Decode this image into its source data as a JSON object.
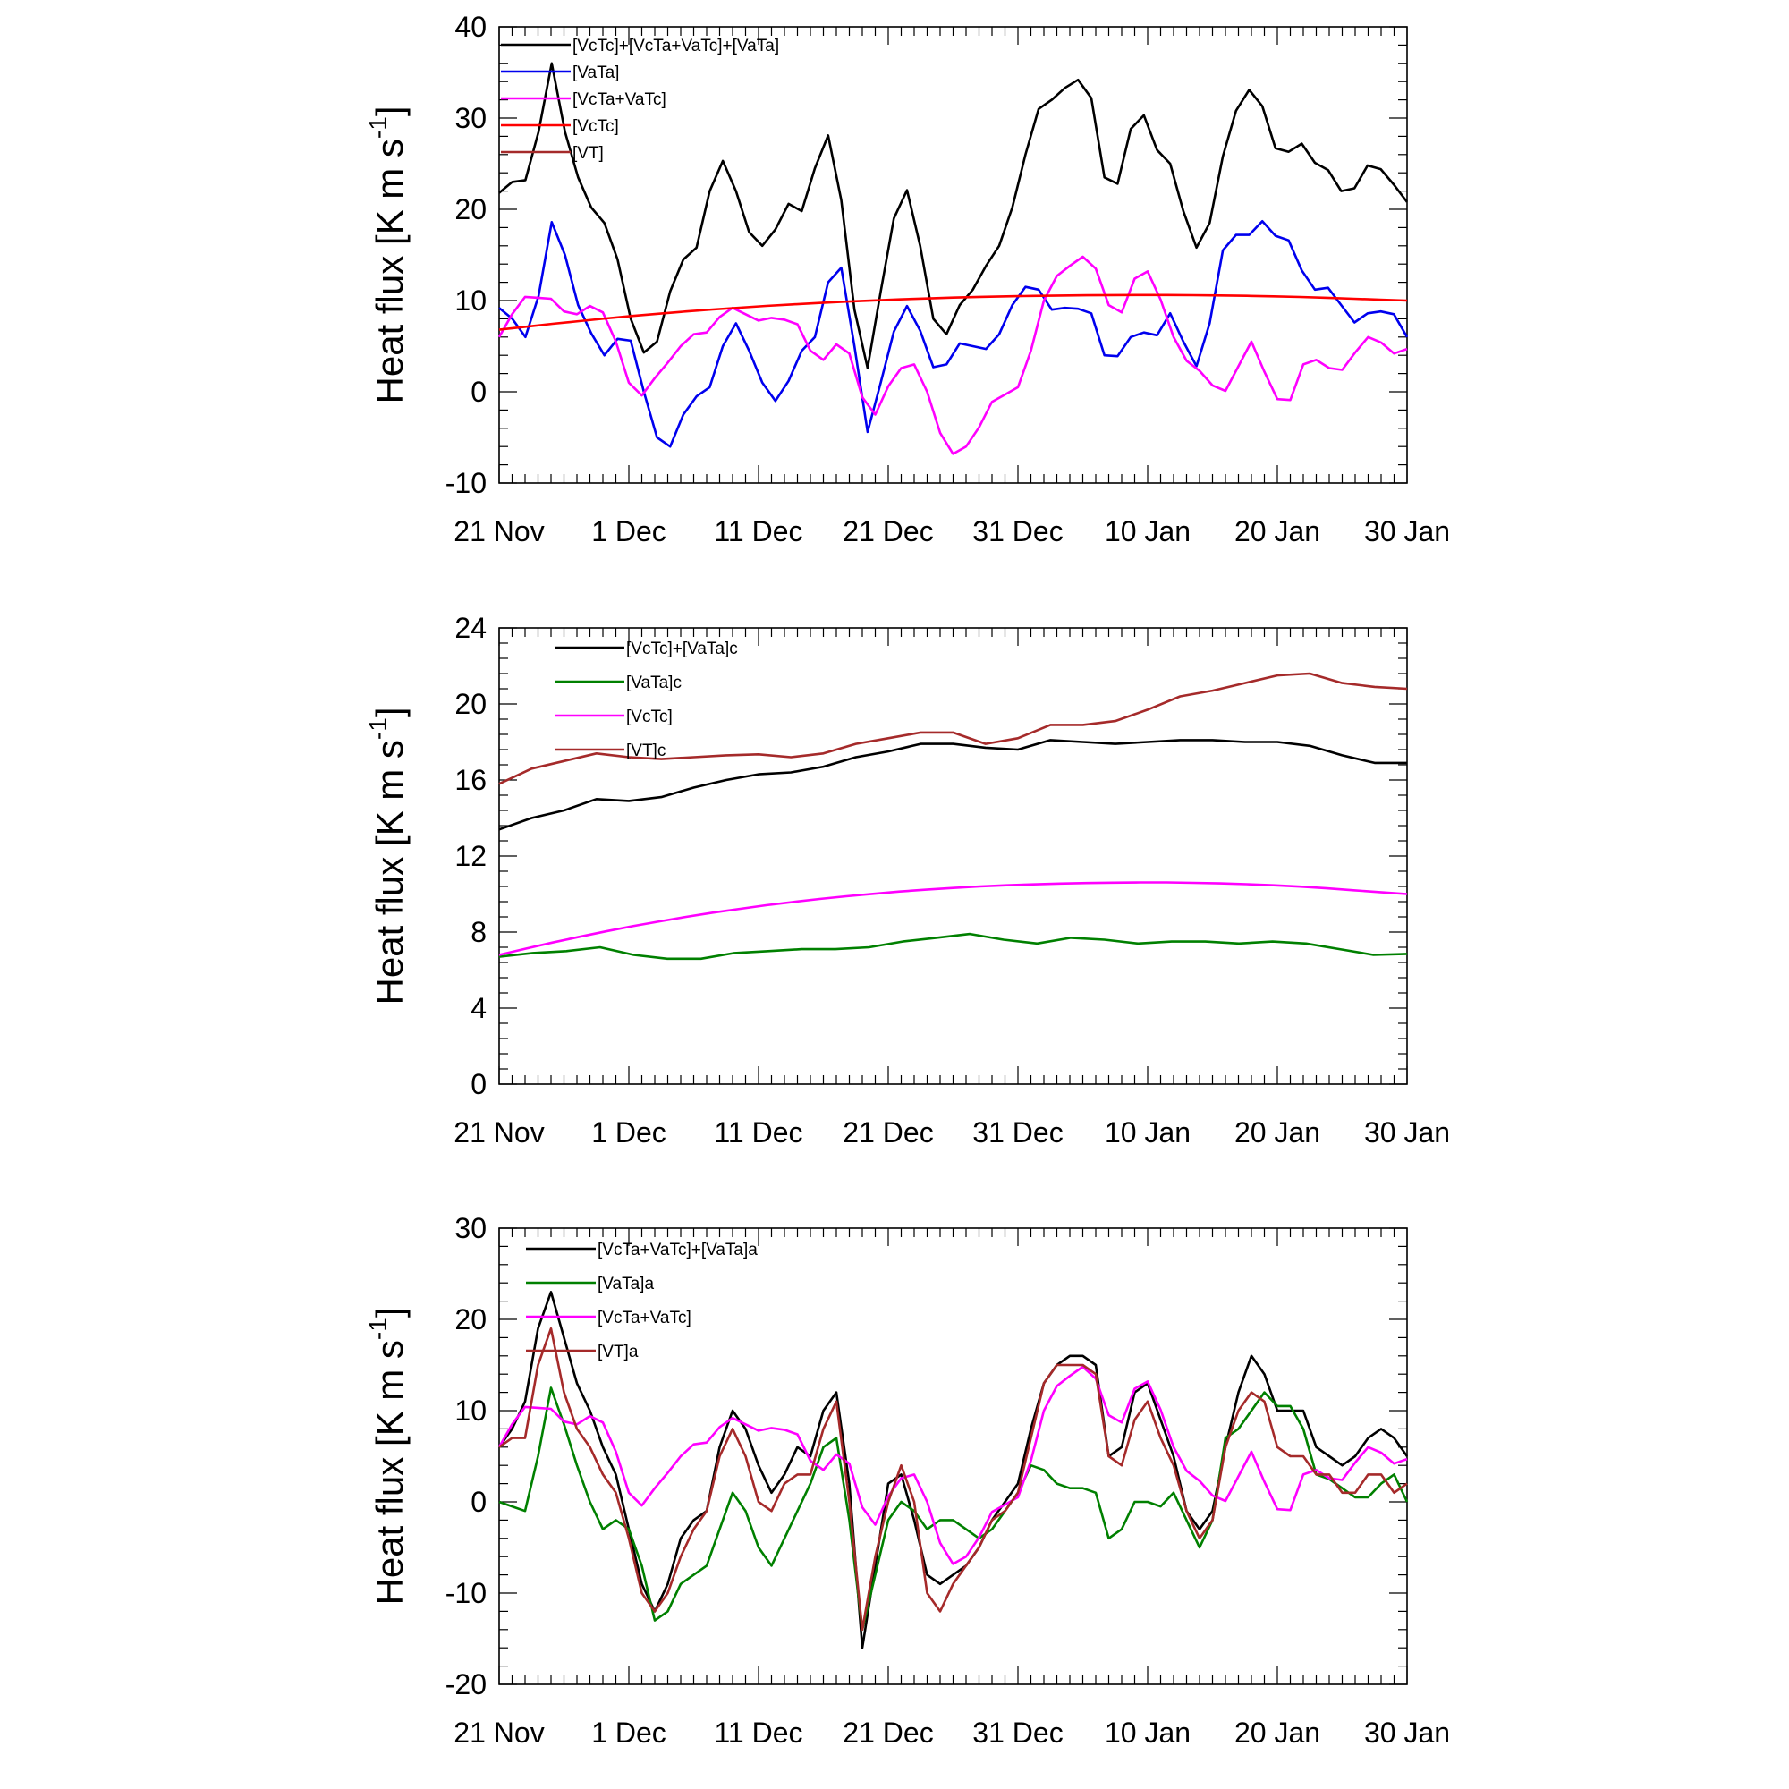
{
  "chart_data": [
    {
      "type": "line",
      "ylabel": "Heat flux [K m s",
      "ylabel_sup": "-1",
      "ylabel_close": "]",
      "ylim": [
        -10,
        40
      ],
      "yticks": [
        -10,
        0,
        10,
        20,
        30,
        40
      ],
      "xlim": [
        0,
        70
      ],
      "xticks": [
        {
          "day": 0,
          "label": "21 Nov"
        },
        {
          "day": 10,
          "label": "1 Dec"
        },
        {
          "day": 20,
          "label": "11 Dec"
        },
        {
          "day": 30,
          "label": "21 Dec"
        },
        {
          "day": 40,
          "label": "31 Dec"
        },
        {
          "day": 50,
          "label": "10 Jan"
        },
        {
          "day": 60,
          "label": "20 Jan"
        },
        {
          "day": 70,
          "label": "30 Jan"
        }
      ],
      "legend_location": "top-left",
      "series": [
        {
          "name": "[VcTc]+[VcTa+VaTc]+[VaTa]",
          "color": "#000000",
          "in_legend": true,
          "values": [
            21.8,
            23,
            23.2,
            28.5,
            36,
            28.5,
            23.5,
            20.2,
            18.5,
            14.5,
            8,
            4.3,
            5.5,
            11,
            14.5,
            15.8,
            22,
            25.3,
            22,
            17.5,
            16,
            17.8,
            20.6,
            19.8,
            24.5,
            28.1,
            21,
            9,
            2.6,
            11,
            19,
            22.1,
            16,
            8,
            6.3,
            9.5,
            11.2,
            13.8,
            16,
            20.2,
            26,
            31,
            32,
            33.3,
            34.2,
            32.2,
            23.5,
            22.8,
            28.8,
            30.3,
            26.5,
            25,
            19.8,
            15.8,
            18.5,
            25.8,
            30.8,
            33.1,
            31.3,
            26.7,
            26.3,
            27.2,
            25.1,
            24.3,
            22,
            22.3,
            24.8,
            24.4,
            22.7,
            20.8
          ]
        },
        {
          "name": "[VaTa]",
          "color": "#0000ee",
          "in_legend": true,
          "values": [
            9.2,
            8,
            6,
            10.5,
            18.6,
            15,
            9.5,
            6.4,
            4,
            5.8,
            5.6,
            0,
            -5,
            -6,
            -2.5,
            -0.5,
            0.5,
            5,
            7.5,
            4.5,
            1,
            -1,
            1.2,
            4.5,
            6,
            12,
            13.6,
            5,
            -4.4,
            1,
            6.6,
            9.4,
            6.7,
            2.7,
            3,
            5.3,
            5,
            4.7,
            6.3,
            9.5,
            11.5,
            11.2,
            9,
            9.2,
            9.1,
            8.6,
            4,
            3.9,
            6,
            6.5,
            6.2,
            8.6,
            5.5,
            2.8,
            7.5,
            15.5,
            17.2,
            17.2,
            18.7,
            17.1,
            16.6,
            13.3,
            11.2,
            11.4,
            9.5,
            7.6,
            8.6,
            8.8,
            8.5,
            6
          ]
        },
        {
          "name": "[VcTa+VaTc]",
          "color": "#ff00ff",
          "in_legend": true,
          "values": [
            6,
            8.5,
            10.4,
            10.3,
            10.2,
            8.8,
            8.5,
            9.4,
            8.7,
            5.5,
            1,
            -0.4,
            1.5,
            3.2,
            5,
            6.3,
            6.5,
            8.2,
            9.2,
            8.5,
            7.8,
            8.1,
            7.9,
            7.4,
            4.5,
            3.5,
            5.2,
            4.2,
            -0.6,
            -2.5,
            0.6,
            2.6,
            3,
            0,
            -4.5,
            -6.8,
            -6,
            -3.9,
            -1.1,
            -0.3,
            0.5,
            4.5,
            10,
            12.7,
            13.8,
            14.8,
            13.5,
            9.5,
            8.7,
            12.4,
            13.2,
            10.1,
            6,
            3.4,
            2.3,
            0.7,
            0.1,
            2.8,
            5.5,
            2.2,
            -0.8,
            -0.9,
            3,
            3.5,
            2.6,
            2.4,
            4.3,
            6,
            5.4,
            4.2,
            4.7
          ]
        },
        {
          "name": "[VcTc]",
          "color": "#ff0000",
          "in_legend": true,
          "values": [
            6.8,
            7.13,
            7.45,
            7.75,
            8.04,
            8.31,
            8.56,
            8.8,
            9.02,
            9.22,
            9.41,
            9.58,
            9.74,
            9.88,
            10.01,
            10.13,
            10.23,
            10.32,
            10.4,
            10.46,
            10.51,
            10.55,
            10.58,
            10.6,
            10.61,
            10.61,
            10.59,
            10.56,
            10.52,
            10.46,
            10.39,
            10.3,
            10.2,
            10.1,
            10
          ]
        },
        {
          "name": "[VT]",
          "color": "#a52a2a",
          "in_legend": true,
          "values": []
        }
      ]
    },
    {
      "type": "line",
      "ylabel": "Heat flux [K m s",
      "ylabel_sup": "-1",
      "ylabel_close": "]",
      "ylim": [
        0,
        24
      ],
      "yticks": [
        0,
        4,
        8,
        12,
        16,
        20,
        24
      ],
      "xlim": [
        0,
        70
      ],
      "xticks": [
        {
          "day": 0,
          "label": "21 Nov"
        },
        {
          "day": 10,
          "label": "1 Dec"
        },
        {
          "day": 20,
          "label": "11 Dec"
        },
        {
          "day": 30,
          "label": "21 Dec"
        },
        {
          "day": 40,
          "label": "31 Dec"
        },
        {
          "day": 50,
          "label": "10 Jan"
        },
        {
          "day": 60,
          "label": "20 Jan"
        },
        {
          "day": 70,
          "label": "30 Jan"
        }
      ],
      "legend_location": "top-left",
      "series": [
        {
          "name": "[VcTc]+[VaTa]c",
          "color": "#000000",
          "in_legend": true,
          "values": [
            13.4,
            14.0,
            14.4,
            15.0,
            14.9,
            15.1,
            15.6,
            16.0,
            16.3,
            16.4,
            16.7,
            17.2,
            17.5,
            17.9,
            17.9,
            17.7,
            17.6,
            18.1,
            18.0,
            17.9,
            18.0,
            18.1,
            18.1,
            18.0,
            18.0,
            17.8,
            17.3,
            16.9,
            16.9
          ]
        },
        {
          "name": "[VaTa]c",
          "color": "#008000",
          "in_legend": true,
          "values": [
            6.7,
            6.9,
            7.0,
            7.2,
            6.8,
            6.6,
            6.6,
            6.9,
            7.0,
            7.1,
            7.1,
            7.2,
            7.5,
            7.7,
            7.9,
            7.6,
            7.4,
            7.7,
            7.6,
            7.4,
            7.5,
            7.5,
            7.4,
            7.5,
            7.4,
            7.1,
            6.8,
            6.85
          ]
        },
        {
          "name": "[VcTc]",
          "color": "#ff00ff",
          "in_legend": true,
          "values": [
            6.8,
            7.13,
            7.45,
            7.75,
            8.04,
            8.31,
            8.56,
            8.8,
            9.02,
            9.22,
            9.41,
            9.58,
            9.74,
            9.88,
            10.01,
            10.13,
            10.23,
            10.32,
            10.4,
            10.46,
            10.51,
            10.55,
            10.58,
            10.6,
            10.61,
            10.61,
            10.59,
            10.56,
            10.52,
            10.46,
            10.39,
            10.3,
            10.2,
            10.1,
            10
          ]
        },
        {
          "name": "[VT]c",
          "color": "#a52a2a",
          "in_legend": true,
          "values": [
            15.8,
            16.6,
            17.0,
            17.4,
            17.2,
            17.1,
            17.2,
            17.3,
            17.35,
            17.2,
            17.4,
            17.9,
            18.2,
            18.5,
            18.5,
            17.9,
            18.2,
            18.9,
            18.9,
            19.1,
            19.7,
            20.4,
            20.7,
            21.1,
            21.5,
            21.6,
            21.1,
            20.9,
            20.8
          ]
        }
      ]
    },
    {
      "type": "line",
      "ylabel": "Heat flux [K m s",
      "ylabel_sup": "-1",
      "ylabel_close": "]",
      "ylim": [
        -20,
        30
      ],
      "yticks": [
        -20,
        -10,
        0,
        10,
        20,
        30
      ],
      "xlim": [
        0,
        70
      ],
      "xticks": [
        {
          "day": 0,
          "label": "21 Nov"
        },
        {
          "day": 10,
          "label": "1 Dec"
        },
        {
          "day": 20,
          "label": "11 Dec"
        },
        {
          "day": 30,
          "label": "21 Dec"
        },
        {
          "day": 40,
          "label": "31 Dec"
        },
        {
          "day": 50,
          "label": "10 Jan"
        },
        {
          "day": 60,
          "label": "20 Jan"
        },
        {
          "day": 70,
          "label": "30 Jan"
        }
      ],
      "legend_location": "top-left",
      "series": [
        {
          "name": "[VcTa+VaTc]+[VaTa]a",
          "color": "#000000",
          "in_legend": true,
          "values": [
            6,
            8,
            11,
            19,
            23,
            18,
            13,
            10,
            6,
            3,
            -3,
            -9,
            -12,
            -9,
            -4,
            -2,
            -1,
            6,
            10,
            8,
            4,
            1,
            3,
            6,
            5,
            10,
            12,
            2,
            -16,
            -7,
            2,
            3,
            -2,
            -8,
            -9,
            -8,
            -7,
            -5,
            -2,
            0,
            2,
            8,
            13,
            15,
            16,
            16,
            15,
            5,
            6,
            12,
            13,
            9,
            5,
            -1,
            -3,
            -1,
            6,
            12,
            16,
            14,
            10,
            10,
            10,
            6,
            5,
            4,
            5,
            7,
            8,
            7,
            5
          ]
        },
        {
          "name": "[VaTa]a",
          "color": "#008000",
          "in_legend": true,
          "values": [
            0,
            -0.5,
            -1,
            5,
            12.5,
            8.5,
            4,
            0,
            -3,
            -2,
            -3,
            -7,
            -13,
            -12,
            -9,
            -8,
            -7,
            -3,
            1,
            -1,
            -5,
            -7,
            -4,
            -1,
            2,
            6,
            7,
            -2,
            -14,
            -8,
            -2,
            0,
            -1,
            -3,
            -2,
            -2,
            -3,
            -4,
            -3,
            -1,
            1,
            4,
            3.5,
            2,
            1.5,
            1.5,
            1,
            -4,
            -3,
            0,
            0,
            -0.5,
            1,
            -2,
            -5,
            -2,
            7,
            8,
            10,
            12,
            10.5,
            10.5,
            8,
            3,
            2.5,
            1.5,
            0.5,
            0.5,
            2,
            3,
            0
          ]
        },
        {
          "name": "[VcTa+VaTc]",
          "color": "#ff00ff",
          "in_legend": true,
          "values": [
            6,
            8.5,
            10.4,
            10.3,
            10.2,
            8.8,
            8.5,
            9.4,
            8.7,
            5.5,
            1,
            -0.4,
            1.5,
            3.2,
            5,
            6.3,
            6.5,
            8.2,
            9.2,
            8.5,
            7.8,
            8.1,
            7.9,
            7.4,
            4.5,
            3.5,
            5.2,
            4.2,
            -0.6,
            -2.5,
            0.6,
            2.6,
            3,
            0,
            -4.5,
            -6.8,
            -6,
            -3.9,
            -1.1,
            -0.3,
            0.5,
            4.5,
            10,
            12.7,
            13.8,
            14.8,
            13.5,
            9.5,
            8.7,
            12.4,
            13.2,
            10.1,
            6,
            3.4,
            2.3,
            0.7,
            0.1,
            2.8,
            5.5,
            2.2,
            -0.8,
            -0.9,
            3,
            3.5,
            2.6,
            2.4,
            4.3,
            6,
            5.4,
            4.2,
            4.7
          ]
        },
        {
          "name": "[VT]a",
          "color": "#a52a2a",
          "in_legend": true,
          "values": [
            6,
            7,
            7,
            15,
            19,
            12,
            8,
            6,
            3,
            1,
            -4,
            -10,
            -12,
            -10,
            -6,
            -3,
            -1,
            5,
            8,
            5,
            0,
            -1,
            2,
            3,
            3,
            8,
            11,
            0,
            -14,
            -6,
            0,
            4,
            0,
            -10,
            -12,
            -9,
            -7,
            -5,
            -2,
            -1,
            1,
            7,
            13,
            15,
            15,
            15,
            14,
            5,
            4,
            9,
            11,
            7,
            4,
            -1,
            -4,
            -2,
            6,
            10,
            12,
            11,
            6,
            5,
            5,
            3,
            3,
            1,
            1,
            3,
            3,
            1,
            2
          ]
        }
      ]
    }
  ]
}
